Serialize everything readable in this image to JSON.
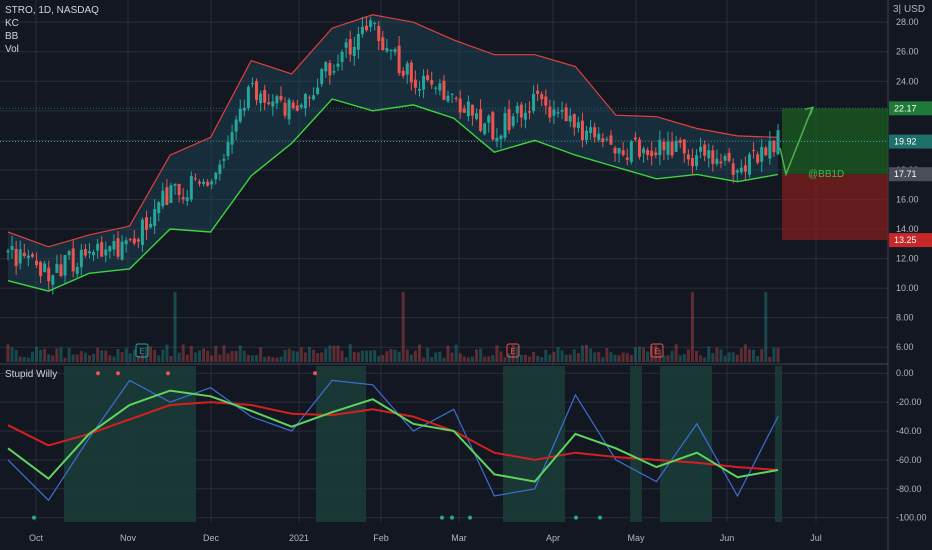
{
  "header": {
    "symbol": "STRO, 1D, NASDAQ",
    "indicators": [
      "KC",
      "BB",
      "Vol"
    ],
    "scale_mode": "3|",
    "currency": "USD"
  },
  "oscillator": {
    "title": "Stupid Willy"
  },
  "annotations": {
    "signal_label": "@BB1D",
    "earnings_marker": "E"
  },
  "colors": {
    "background": "#131722",
    "grid": "#2a2e39",
    "up": "#26a69a",
    "down": "#ef5350",
    "kc_fill": "#1e4a5a",
    "bb_upper": "#e04040",
    "bb_lower": "#3dd43d",
    "target_zone": "#1b5e20",
    "stop_zone": "#7f1d1d",
    "osc_line": "#3d6fd6",
    "osc_fast": "#5ed65e",
    "osc_slow": "#d42020",
    "osc_highlight": "#1b3b36"
  },
  "chart_data": [
    {
      "type": "line",
      "title": "STRO, 1D, NASDAQ",
      "y_axis_ticks": [
        "28.00",
        "26.00",
        "24.00",
        "22.00",
        "20.00",
        "18.00",
        "16.00",
        "14.00",
        "12.00",
        "10.00",
        "8.00",
        "6.00"
      ],
      "x_axis_ticks": [
        "Oct",
        "Nov",
        "Dec",
        "2021",
        "Feb",
        "Mar",
        "Apr",
        "May",
        "Jun",
        "Jul"
      ],
      "ylim": [
        5,
        29.5
      ],
      "price_levels": {
        "target": "22.17",
        "current": "19.92",
        "entry": "17.71",
        "stop": "13.25"
      },
      "x": [
        "Sep 25",
        "Oct 9",
        "Oct 23",
        "Nov 6",
        "Nov 20",
        "Dec 4",
        "Dec 18",
        "Jan 1",
        "Jan 15",
        "Jan 29",
        "Feb 12",
        "Feb 26",
        "Mar 12",
        "Mar 26",
        "Apr 9",
        "Apr 23",
        "May 7",
        "May 21",
        "Jun 4",
        "Jun 18"
      ],
      "series": [
        {
          "values": [
            12.2,
            11.1,
            12.4,
            13.0,
            16.5,
            17.4,
            23.4,
            22.0,
            25.2,
            27.5,
            24.0,
            23.0,
            20.6,
            22.5,
            21.0,
            19.5,
            19.4,
            19.0,
            18.0,
            19.9
          ]
        },
        {
          "values": [
            13.8,
            12.8,
            13.6,
            14.2,
            19.0,
            20.2,
            25.4,
            24.5,
            27.6,
            28.5,
            28.0,
            26.8,
            25.8,
            25.8,
            25.0,
            21.7,
            21.6,
            20.8,
            20.3,
            20.2
          ]
        },
        {
          "values": [
            10.5,
            9.8,
            11.0,
            11.3,
            14.0,
            13.8,
            17.6,
            19.8,
            22.8,
            22.0,
            22.4,
            21.5,
            19.2,
            20.0,
            19.0,
            18.2,
            17.4,
            17.7,
            17.2,
            17.7
          ]
        }
      ]
    },
    {
      "type": "line",
      "title": "Stupid Willy",
      "y_axis_ticks": [
        "0.00",
        "-20.00",
        "-40.00",
        "-60.00",
        "-80.00",
        "-100.00"
      ],
      "ylim": [
        -103,
        5
      ],
      "x": [
        "Sep 25",
        "Oct 9",
        "Oct 23",
        "Nov 6",
        "Nov 20",
        "Dec 4",
        "Dec 18",
        "Jan 1",
        "Jan 15",
        "Jan 29",
        "Feb 12",
        "Feb 26",
        "Mar 12",
        "Mar 26",
        "Apr 9",
        "Apr 23",
        "May 7",
        "May 21",
        "Jun 4",
        "Jun 18"
      ],
      "series": [
        {
          "values": [
            -60,
            -88,
            -45,
            -5,
            -20,
            -10,
            -30,
            -40,
            -5,
            -8,
            -40,
            -25,
            -85,
            -80,
            -15,
            -60,
            -75,
            -35,
            -85,
            -30
          ]
        },
        {
          "values": [
            -52,
            -73,
            -42,
            -22,
            -12,
            -16,
            -26,
            -37,
            -27,
            -18,
            -35,
            -40,
            -70,
            -75,
            -42,
            -52,
            -65,
            -55,
            -72,
            -67
          ]
        },
        {
          "values": [
            -36,
            -50,
            -42,
            -32,
            -22,
            -20,
            -22,
            -28,
            -29,
            -25,
            -30,
            -40,
            -55,
            -60,
            -55,
            -58,
            -60,
            -62,
            -65,
            -67
          ]
        }
      ]
    }
  ]
}
